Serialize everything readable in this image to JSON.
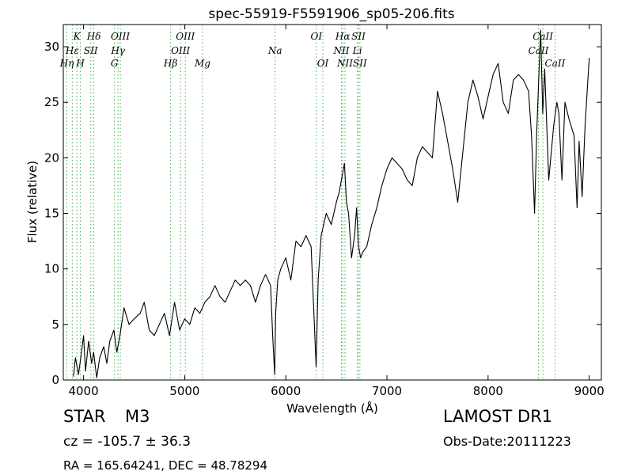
{
  "chart_data": {
    "type": "line",
    "title": "spec-55919-F5591906_sp05-206.fits",
    "xlabel": "Wavelength (Å)",
    "ylabel": "Flux (relative)",
    "xlim": [
      3800,
      9120
    ],
    "ylim": [
      0,
      32
    ],
    "xticks": [
      4000,
      5000,
      6000,
      7000,
      8000,
      9000
    ],
    "yticks": [
      0,
      5,
      10,
      15,
      20,
      25,
      30
    ],
    "grid": false,
    "series": [
      {
        "color": "#000000",
        "x": [
          3900,
          3920,
          3950,
          3980,
          4000,
          4020,
          4050,
          4080,
          4100,
          4130,
          4160,
          4200,
          4230,
          4260,
          4300,
          4330,
          4360,
          4400,
          4450,
          4500,
          4560,
          4600,
          4650,
          4700,
          4750,
          4800,
          4850,
          4900,
          4950,
          5000,
          5050,
          5100,
          5150,
          5200,
          5250,
          5300,
          5350,
          5400,
          5450,
          5500,
          5550,
          5600,
          5650,
          5700,
          5750,
          5800,
          5850,
          5870,
          5890,
          5900,
          5920,
          5950,
          6000,
          6050,
          6100,
          6150,
          6200,
          6250,
          6280,
          6300,
          6320,
          6350,
          6400,
          6450,
          6500,
          6530,
          6560,
          6580,
          6600,
          6620,
          6650,
          6680,
          6700,
          6720,
          6740,
          6760,
          6800,
          6850,
          6900,
          6950,
          7000,
          7050,
          7100,
          7150,
          7200,
          7250,
          7300,
          7350,
          7400,
          7450,
          7500,
          7550,
          7600,
          7650,
          7700,
          7750,
          7800,
          7850,
          7900,
          7950,
          8000,
          8050,
          8100,
          8150,
          8200,
          8250,
          8300,
          8350,
          8400,
          8430,
          8460,
          8480,
          8500,
          8520,
          8540,
          8560,
          8600,
          8650,
          8680,
          8700,
          8730,
          8760,
          8800,
          8850,
          8880,
          8900,
          8930,
          8960,
          9000
        ],
        "y": [
          0.3,
          2.0,
          0.5,
          2.5,
          4.0,
          0.8,
          3.5,
          1.5,
          2.5,
          0.2,
          2.0,
          3.0,
          1.5,
          3.5,
          4.5,
          2.5,
          4.0,
          6.5,
          5.0,
          5.5,
          6.0,
          7.0,
          4.5,
          4.0,
          5.0,
          6.0,
          4.0,
          7.0,
          4.5,
          5.5,
          5.0,
          6.5,
          6.0,
          7.0,
          7.5,
          8.5,
          7.5,
          7.0,
          8.0,
          9.0,
          8.5,
          9.0,
          8.5,
          7.0,
          8.5,
          9.5,
          8.5,
          4.0,
          0.5,
          6.0,
          9.0,
          10.0,
          11.0,
          9.0,
          12.5,
          12.0,
          13.0,
          12.0,
          5.5,
          1.2,
          9.0,
          13.0,
          15.0,
          14.0,
          16.0,
          17.0,
          18.5,
          19.5,
          16.0,
          15.0,
          11.0,
          13.0,
          15.5,
          12.0,
          11.0,
          11.5,
          12.0,
          14.0,
          15.5,
          17.5,
          19.0,
          20.0,
          19.5,
          19.0,
          18.0,
          17.5,
          20.0,
          21.0,
          20.5,
          20.0,
          26.0,
          24.0,
          21.5,
          19.0,
          16.0,
          20.5,
          25.0,
          27.0,
          25.5,
          23.5,
          25.5,
          27.5,
          28.5,
          25.0,
          24.0,
          27.0,
          27.5,
          27.0,
          26.0,
          22.0,
          15.0,
          22.0,
          27.0,
          31.5,
          24.0,
          28.0,
          18.0,
          23.0,
          25.0,
          24.0,
          18.0,
          25.0,
          23.5,
          22.0,
          15.5,
          21.5,
          16.5,
          23.0,
          29.0
        ]
      }
    ],
    "lines": [
      {
        "name": "Hη",
        "x": 3835,
        "row": 3
      },
      {
        "name": "Hε",
        "x": 3889,
        "row": 2
      },
      {
        "name": "K",
        "x": 3934,
        "row": 1
      },
      {
        "name": "H",
        "x": 3969,
        "row": 3
      },
      {
        "name": "SII",
        "x": 4072,
        "row": 2
      },
      {
        "name": "Hδ",
        "x": 4102,
        "row": 1
      },
      {
        "name": "G",
        "x": 4306,
        "row": 3
      },
      {
        "name": "Hγ",
        "x": 4341,
        "row": 2
      },
      {
        "name": "OIII",
        "x": 4364,
        "row": 1
      },
      {
        "name": "Hβ",
        "x": 4861,
        "row": 3
      },
      {
        "name": "OIII",
        "x": 4959,
        "row": 2
      },
      {
        "name": "OIII",
        "x": 5007,
        "row": 1
      },
      {
        "name": "Mg",
        "x": 5177,
        "row": 3
      },
      {
        "name": "Na",
        "x": 5894,
        "row": 2
      },
      {
        "name": "OI",
        "x": 6302,
        "row": 1
      },
      {
        "name": "OI",
        "x": 6366,
        "row": 3
      },
      {
        "name": "NII",
        "x": 6550,
        "row": 2
      },
      {
        "name": "Hα",
        "x": 6563,
        "row": 1
      },
      {
        "name": "NII",
        "x": 6585,
        "row": 3
      },
      {
        "name": "Li",
        "x": 6708,
        "row": 2
      },
      {
        "name": "SII",
        "x": 6718,
        "row": 1
      },
      {
        "name": "SII",
        "x": 6733,
        "row": 3
      },
      {
        "name": "CaII",
        "x": 8498,
        "row": 2
      },
      {
        "name": "CaII",
        "x": 8542,
        "row": 1
      },
      {
        "name": "CaII",
        "x": 8662,
        "row": 3
      }
    ]
  },
  "info": {
    "object_class": "STAR",
    "subclass": "M3",
    "survey": "LAMOST DR1",
    "redshift_text": "cz = -105.7 ± 36.3",
    "obs_date": "Obs-Date:20111223",
    "position": "RA = 165.64241, DEC = 48.78294"
  }
}
